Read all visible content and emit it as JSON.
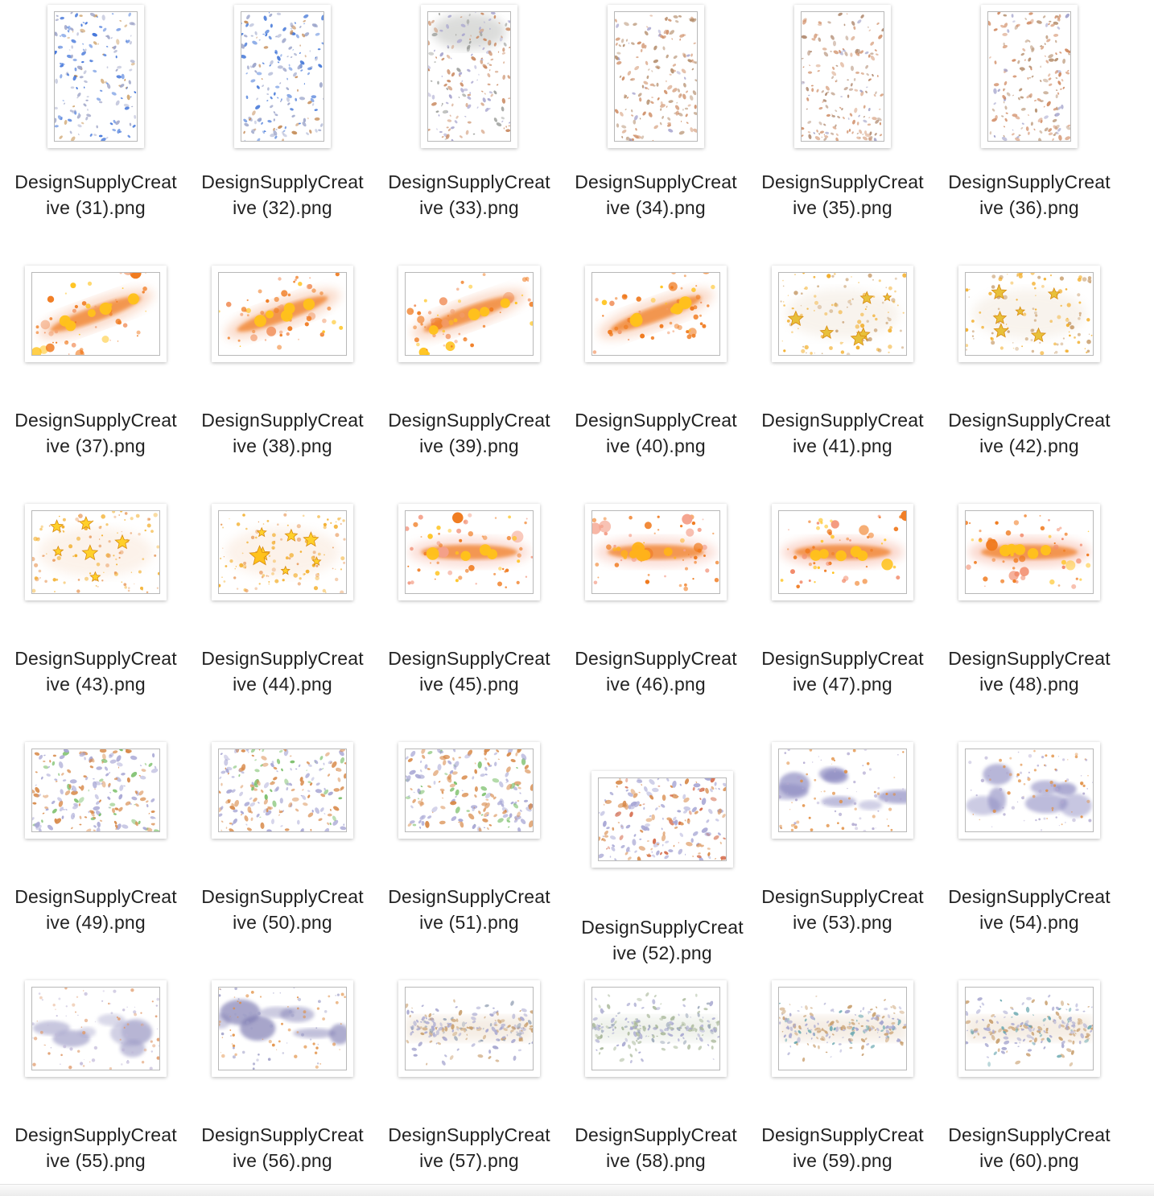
{
  "window": {
    "view": "icon-grid"
  },
  "files": [
    {
      "line1": "DesignSupplyCreat",
      "line2": "ive (31).png",
      "kind": "portrait",
      "palette": [
        "#3a6fd8",
        "#c9985a",
        "#a0a6c8"
      ]
    },
    {
      "line1": "DesignSupplyCreat",
      "line2": "ive (32).png",
      "kind": "portrait",
      "palette": [
        "#3d72d6",
        "#c48a55",
        "#9aa3c9"
      ]
    },
    {
      "line1": "DesignSupplyCreat",
      "line2": "ive (33).png",
      "kind": "portrait",
      "palette": [
        "#c98a62",
        "#9a9c98",
        "#a9a6cf"
      ]
    },
    {
      "line1": "DesignSupplyCreat",
      "line2": "ive (34).png",
      "kind": "portrait",
      "palette": [
        "#cf8f68",
        "#aaa7d0",
        "#b59070"
      ]
    },
    {
      "line1": "DesignSupplyCreat",
      "line2": "ive (35).png",
      "kind": "portrait",
      "palette": [
        "#cf8d66",
        "#a3a3c8",
        "#b08a70"
      ]
    },
    {
      "line1": "DesignSupplyCreat",
      "line2": "ive (36).png",
      "kind": "portrait",
      "palette": [
        "#d08a62",
        "#9f9fca",
        "#b69070"
      ]
    },
    {
      "line1": "DesignSupplyCreat",
      "line2": "ive (37).png",
      "kind": "galaxy",
      "palette": [
        "#f07a1e",
        "#ffc21a",
        "#f29a6a"
      ]
    },
    {
      "line1": "DesignSupplyCreat",
      "line2": "ive (38).png",
      "kind": "galaxy",
      "palette": [
        "#f07a1e",
        "#ffc21a",
        "#f29a6a"
      ]
    },
    {
      "line1": "DesignSupplyCreat",
      "line2": "ive (39).png",
      "kind": "galaxy",
      "palette": [
        "#f07a1e",
        "#ffc21a",
        "#f29a6a"
      ]
    },
    {
      "line1": "DesignSupplyCreat",
      "line2": "ive (40).png",
      "kind": "galaxy",
      "palette": [
        "#f07a1e",
        "#ffc21a",
        "#f29a6a"
      ]
    },
    {
      "line1": "DesignSupplyCreat",
      "line2": "ive (41).png",
      "kind": "stars",
      "palette": [
        "#f2a81a",
        "#e8c03a",
        "#c9a070"
      ]
    },
    {
      "line1": "DesignSupplyCreat",
      "line2": "ive (42).png",
      "kind": "stars",
      "palette": [
        "#f2a81a",
        "#e8c03a",
        "#c9a070"
      ]
    },
    {
      "line1": "DesignSupplyCreat",
      "line2": "ive (43).png",
      "kind": "stars",
      "palette": [
        "#f2a81a",
        "#ffd02a",
        "#e89a5a"
      ]
    },
    {
      "line1": "DesignSupplyCreat",
      "line2": "ive (44).png",
      "kind": "stars",
      "palette": [
        "#f2a81a",
        "#ffd02a",
        "#e89a5a"
      ]
    },
    {
      "line1": "DesignSupplyCreat",
      "line2": "ive (45).png",
      "kind": "band",
      "palette": [
        "#f07a1e",
        "#ffc21a",
        "#f4a08a"
      ]
    },
    {
      "line1": "DesignSupplyCreat",
      "line2": "ive (46).png",
      "kind": "band",
      "palette": [
        "#f07a1e",
        "#ffb21a",
        "#f4a08a"
      ]
    },
    {
      "line1": "DesignSupplyCreat",
      "line2": "ive (47).png",
      "kind": "band",
      "palette": [
        "#f07a1e",
        "#ffc21a",
        "#f28a6a"
      ]
    },
    {
      "line1": "DesignSupplyCreat",
      "line2": "ive (48).png",
      "kind": "band",
      "palette": [
        "#f07a1e",
        "#ffc21a",
        "#f28a6a"
      ]
    },
    {
      "line1": "DesignSupplyCreat",
      "line2": "ive (49).png",
      "kind": "confetti",
      "palette": [
        "#d88a4a",
        "#7bbf6a",
        "#a7a6d4"
      ]
    },
    {
      "line1": "DesignSupplyCreat",
      "line2": "ive (50).png",
      "kind": "confetti",
      "palette": [
        "#d88a4a",
        "#7bbf6a",
        "#a7a6d4"
      ]
    },
    {
      "line1": "DesignSupplyCreat",
      "line2": "ive (51).png",
      "kind": "confetti",
      "palette": [
        "#d88a4a",
        "#7bbf6a",
        "#a7a6d4"
      ]
    },
    {
      "line1": "DesignSupplyCreat",
      "line2": "ive (52).png",
      "kind": "confetti",
      "palette": [
        "#d88a4a",
        "#d46a4a",
        "#a7a6d4"
      ]
    },
    {
      "line1": "DesignSupplyCreat",
      "line2": "ive (53).png",
      "kind": "nebula",
      "palette": [
        "#8a88c0",
        "#e08a3a",
        "#b0a8d0"
      ]
    },
    {
      "line1": "DesignSupplyCreat",
      "line2": "ive (54).png",
      "kind": "nebula",
      "palette": [
        "#8a88c0",
        "#e08a3a",
        "#b0a8d0"
      ]
    },
    {
      "line1": "DesignSupplyCreat",
      "line2": "ive (55).png",
      "kind": "nebula",
      "palette": [
        "#9a98c4",
        "#e09a6a",
        "#c0b8d8"
      ]
    },
    {
      "line1": "DesignSupplyCreat",
      "line2": "ive (56).png",
      "kind": "nebula",
      "palette": [
        "#7a78b0",
        "#e08a3a",
        "#a0a0c8"
      ]
    },
    {
      "line1": "DesignSupplyCreat",
      "line2": "ive (57).png",
      "kind": "dust",
      "palette": [
        "#c9a070",
        "#9aa6b8",
        "#a8a8d0"
      ]
    },
    {
      "line1": "DesignSupplyCreat",
      "line2": "ive (58).png",
      "kind": "dust",
      "palette": [
        "#a9b89a",
        "#9aa6b8",
        "#a8a8d0"
      ]
    },
    {
      "line1": "DesignSupplyCreat",
      "line2": "ive (59).png",
      "kind": "dust",
      "palette": [
        "#c9a070",
        "#6aa8b0",
        "#a8a8d0"
      ]
    },
    {
      "line1": "DesignSupplyCreat",
      "line2": "ive (60).png",
      "kind": "dust",
      "palette": [
        "#c9a070",
        "#6aa8b0",
        "#a8a8d0"
      ]
    }
  ]
}
